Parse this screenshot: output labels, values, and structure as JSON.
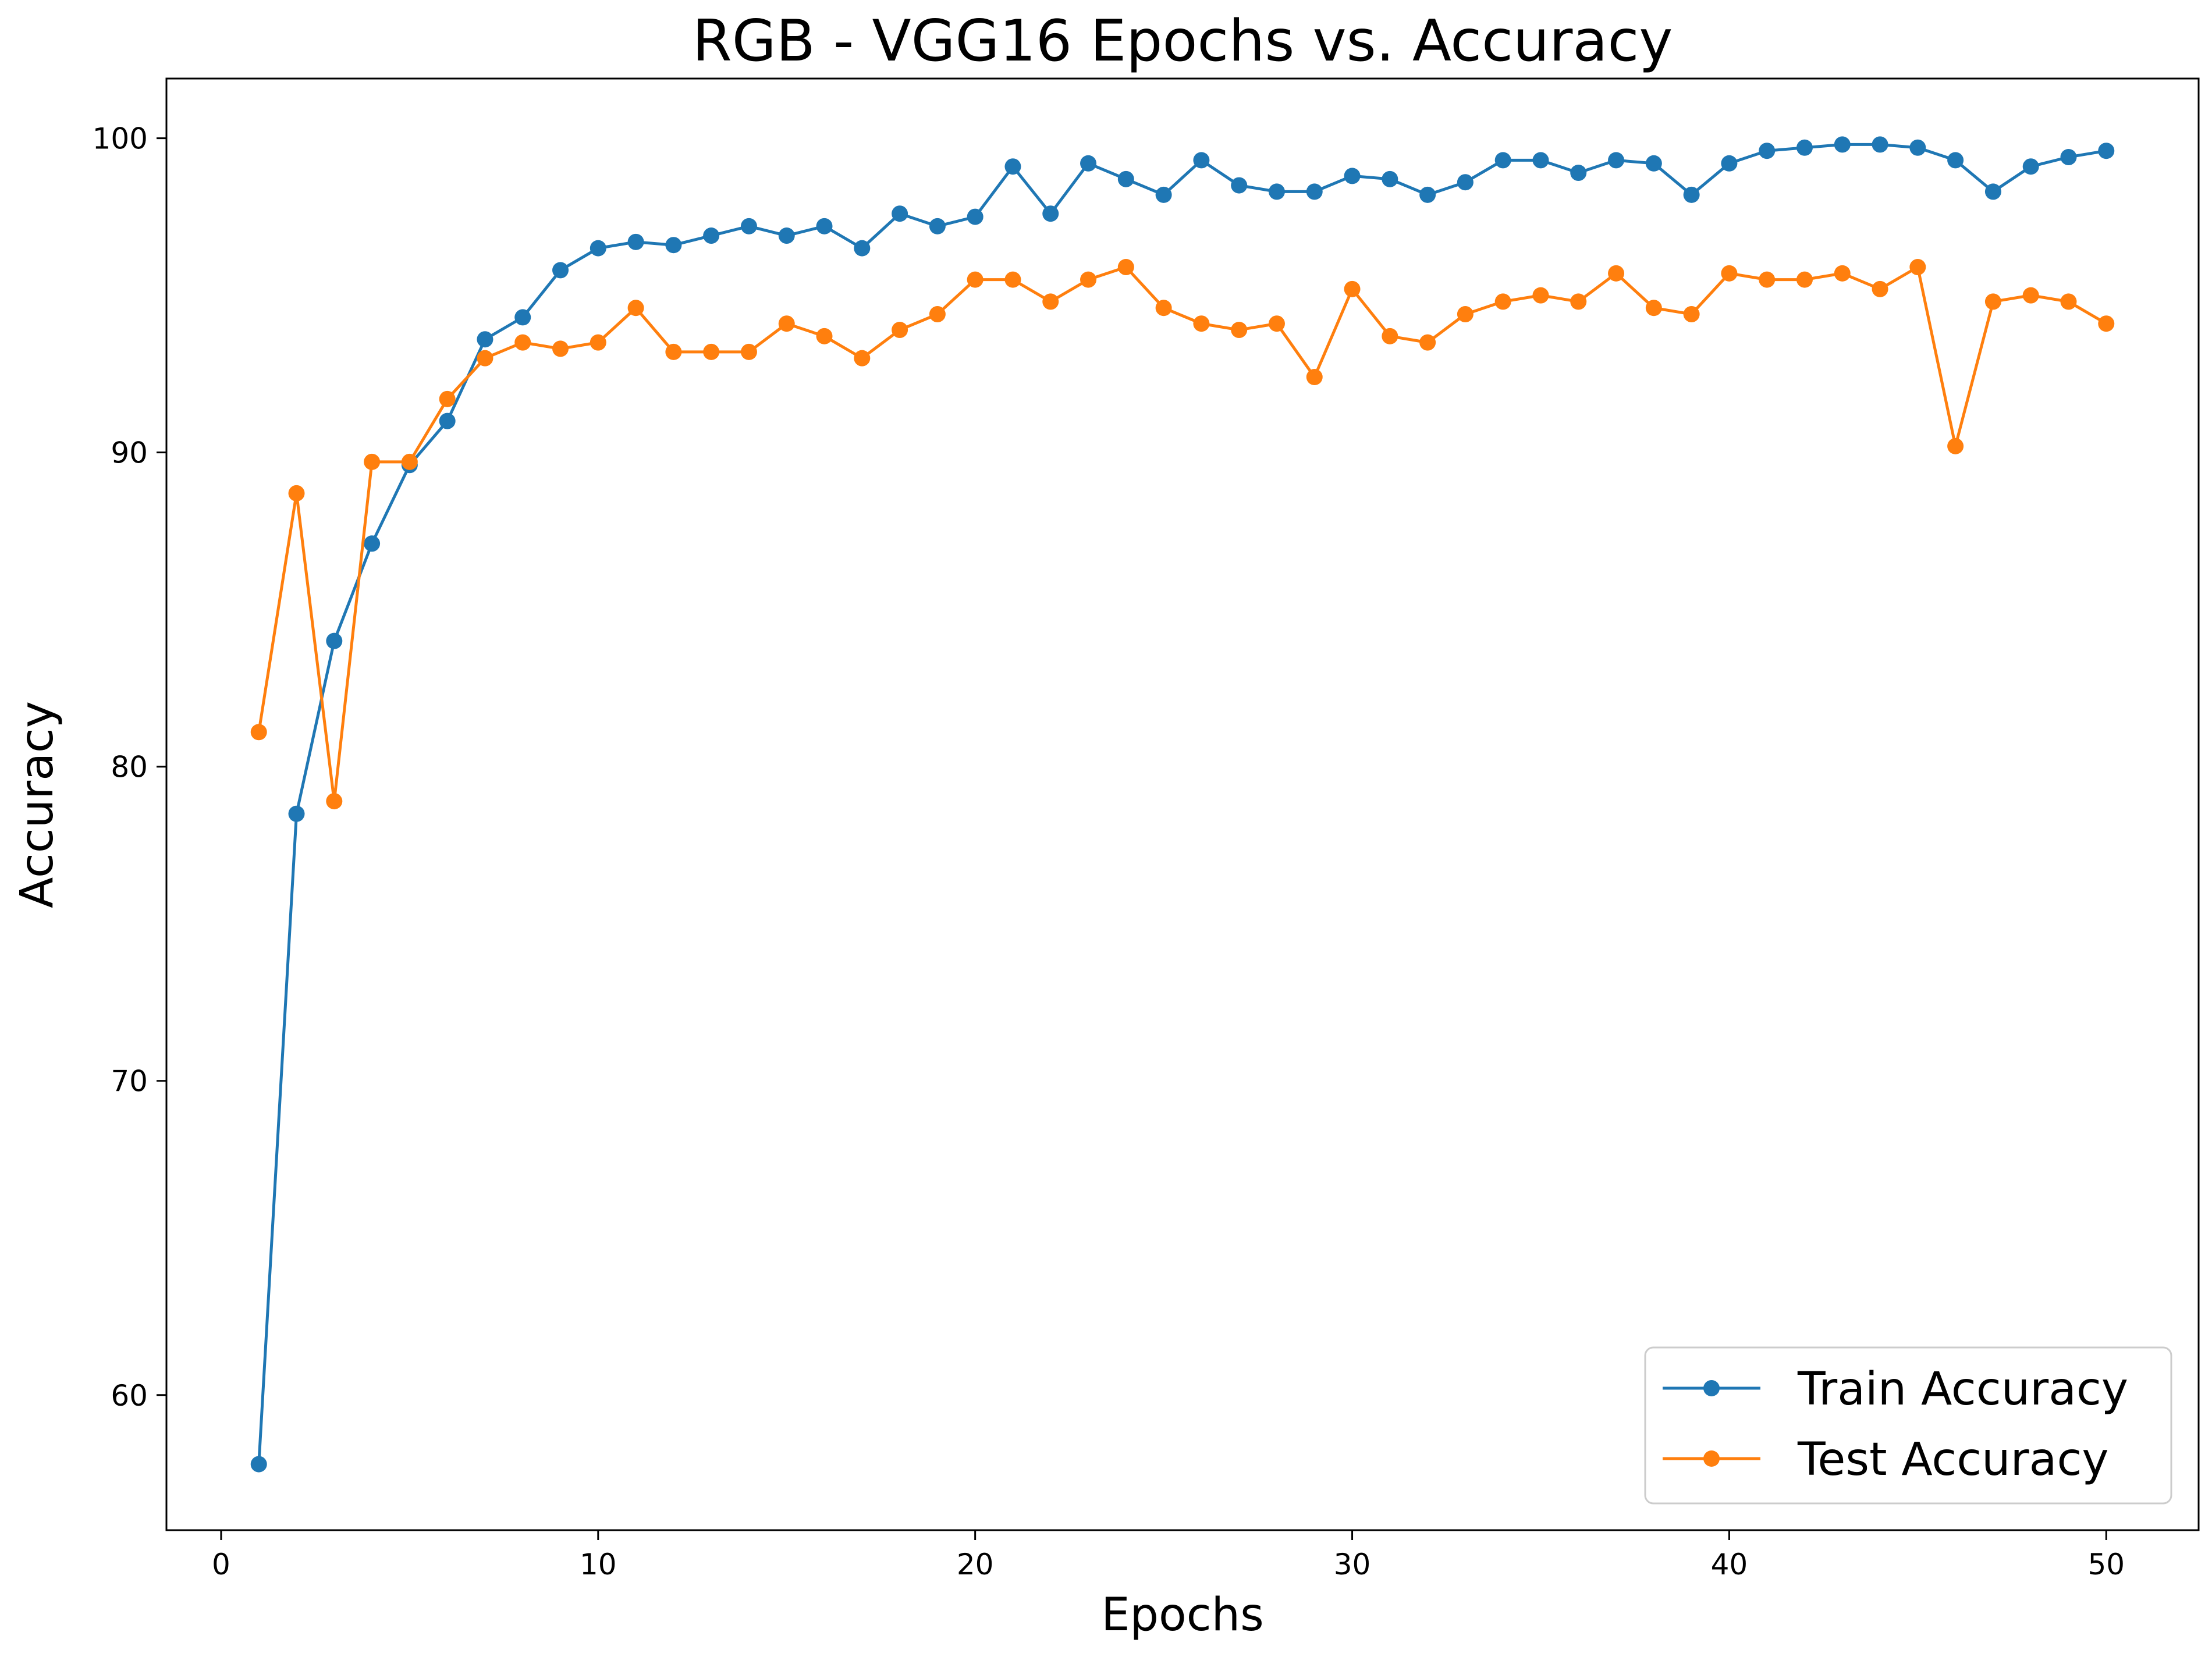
{
  "chart_data": {
    "type": "line",
    "title": "RGB - VGG16 Epochs vs. Accuracy",
    "xlabel": "Epochs",
    "ylabel": "Accuracy",
    "xlim": [
      -1.45,
      52.45
    ],
    "ylim": [
      55.7,
      101.9
    ],
    "xticks": [
      0,
      10,
      20,
      30,
      40,
      50
    ],
    "yticks": [
      60,
      70,
      80,
      90,
      100
    ],
    "grid": false,
    "legend_position": "lower right",
    "x": [
      1,
      2,
      3,
      4,
      5,
      6,
      7,
      8,
      9,
      10,
      11,
      12,
      13,
      14,
      15,
      16,
      17,
      18,
      19,
      20,
      21,
      22,
      23,
      24,
      25,
      26,
      27,
      28,
      29,
      30,
      31,
      32,
      33,
      34,
      35,
      36,
      37,
      38,
      39,
      40,
      41,
      42,
      43,
      44,
      45,
      46,
      47,
      48,
      49,
      50
    ],
    "series": [
      {
        "name": "Train Accuracy",
        "color": "#1f77b4",
        "marker": "circle",
        "values": [
          57.8,
          78.5,
          84.0,
          87.1,
          89.6,
          91.0,
          93.6,
          94.3,
          95.8,
          96.5,
          96.7,
          96.6,
          96.9,
          97.2,
          96.9,
          97.2,
          96.5,
          97.6,
          97.2,
          97.5,
          99.1,
          97.6,
          99.2,
          98.7,
          98.2,
          99.3,
          98.5,
          98.3,
          98.3,
          98.8,
          98.7,
          98.2,
          98.6,
          99.3,
          99.3,
          98.9,
          99.3,
          99.2,
          98.2,
          99.2,
          99.6,
          99.7,
          99.8,
          99.8,
          99.7,
          99.3,
          98.3,
          99.1,
          99.4,
          99.6
        ]
      },
      {
        "name": "Test Accuracy",
        "color": "#ff7f0e",
        "marker": "circle",
        "values": [
          81.1,
          88.7,
          78.9,
          89.7,
          89.7,
          91.7,
          93.0,
          93.5,
          93.3,
          93.5,
          94.6,
          93.2,
          93.2,
          93.2,
          94.1,
          93.7,
          93.0,
          93.9,
          94.4,
          95.5,
          95.5,
          94.8,
          95.5,
          95.9,
          94.6,
          94.1,
          93.9,
          94.1,
          92.4,
          95.2,
          93.7,
          93.5,
          94.4,
          94.8,
          95.0,
          94.8,
          95.7,
          94.6,
          94.4,
          95.7,
          95.5,
          95.5,
          95.7,
          95.2,
          95.9,
          90.2,
          94.8,
          95.0,
          94.8,
          94.1
        ]
      }
    ]
  }
}
